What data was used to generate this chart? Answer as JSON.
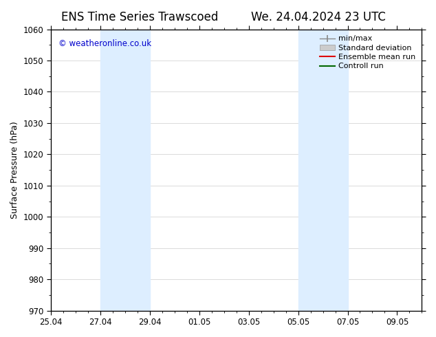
{
  "title_left": "ENS Time Series Trawscoed",
  "title_right": "We. 24.04.2024 23 UTC",
  "ylabel": "Surface Pressure (hPa)",
  "ylim": [
    970,
    1060
  ],
  "yticks": [
    970,
    980,
    990,
    1000,
    1010,
    1020,
    1030,
    1040,
    1050,
    1060
  ],
  "xlabel_dates": [
    "25.04",
    "27.04",
    "29.04",
    "01.05",
    "03.05",
    "05.05",
    "07.05",
    "09.05"
  ],
  "xlabel_day_offsets": [
    0,
    2,
    4,
    6,
    8,
    10,
    12,
    14
  ],
  "xlim": [
    0,
    15
  ],
  "shaded_regions": [
    {
      "start_days": 2,
      "end_days": 4
    },
    {
      "start_days": 10,
      "end_days": 12
    }
  ],
  "shaded_color": "#ddeeff",
  "watermark_text": "© weatheronline.co.uk",
  "watermark_color": "#0000cc",
  "bg_color": "#ffffff",
  "axes_color": "#000000",
  "grid_color": "#cccccc",
  "title_fontsize": 12,
  "label_fontsize": 9,
  "tick_fontsize": 8.5,
  "legend_fontsize": 8
}
